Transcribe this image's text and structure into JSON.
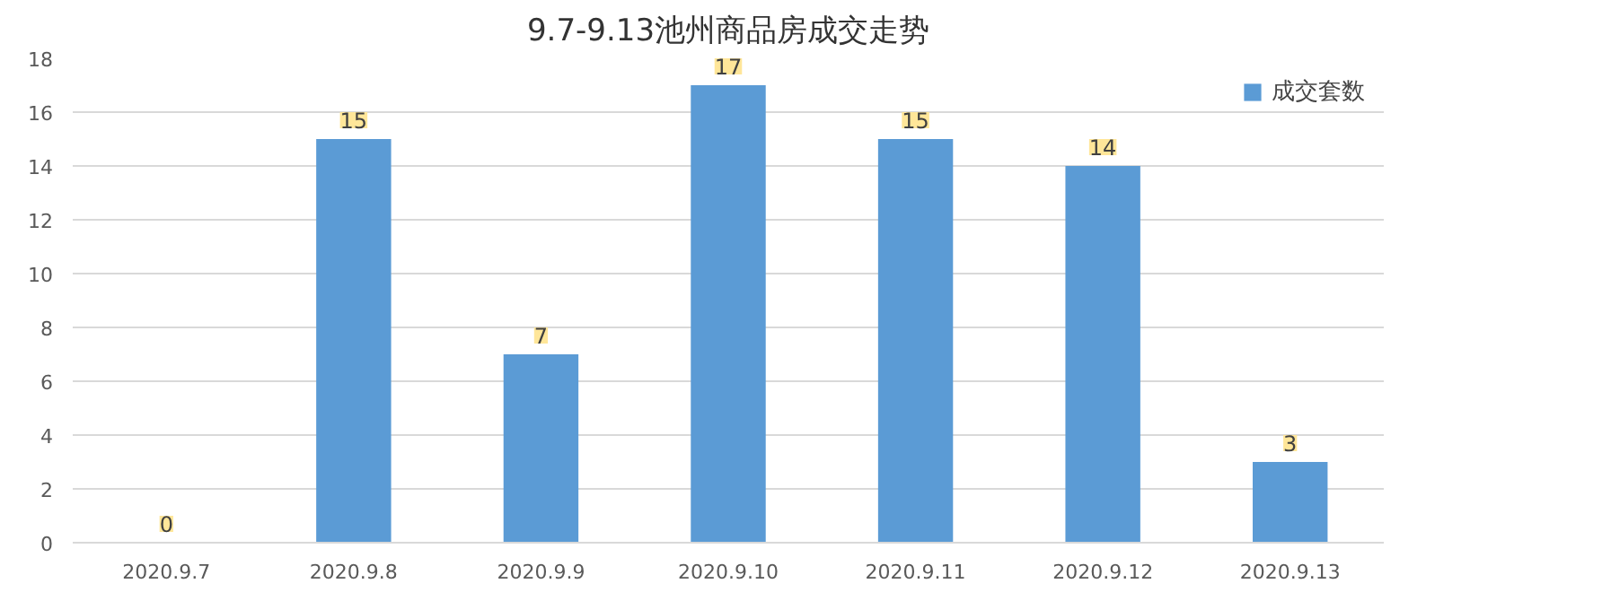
{
  "chart_data": {
    "type": "bar",
    "title": "9.7-9.13池州商品房成交走势",
    "categories": [
      "2020.9.7",
      "2020.9.8",
      "2020.9.9",
      "2020.9.10",
      "2020.9.11",
      "2020.9.12",
      "2020.9.13"
    ],
    "series": [
      {
        "name": "成交套数",
        "color": "#5b9bd5",
        "values": [
          0,
          15,
          7,
          17,
          15,
          14,
          3
        ]
      }
    ],
    "ylim": [
      0,
      18
    ],
    "yticks": [
      0,
      2,
      4,
      6,
      8,
      10,
      12,
      14,
      16,
      18
    ],
    "grid": "y",
    "legend": "top right",
    "data_labels": true
  }
}
